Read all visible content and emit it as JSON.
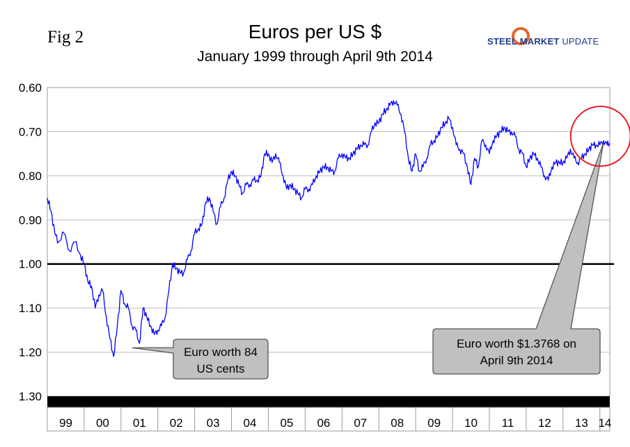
{
  "fig_label": "Fig 2",
  "logo": {
    "word1": "STEEL",
    "word2": "MARKET",
    "word3": "UPDATE",
    "ring_color": "#e8632b"
  },
  "chart_data": {
    "type": "line",
    "title": "Euros per US $",
    "subtitle": "January 1999 through April 9th 2014",
    "xlabel": "",
    "ylabel": "",
    "ylim": [
      0.6,
      1.3
    ],
    "y_inverted": true,
    "y_ticks": [
      "0.60",
      "0.70",
      "0.80",
      "0.90",
      "1.00",
      "1.10",
      "1.20",
      "1.30"
    ],
    "x_range": [
      1999.0,
      2014.27
    ],
    "x_ticks": [
      "99",
      "00",
      "01",
      "02",
      "03",
      "04",
      "05",
      "06",
      "07",
      "08",
      "09",
      "10",
      "11",
      "12",
      "13",
      "14"
    ],
    "reference_line": {
      "value": 1.0,
      "color": "#000000"
    },
    "series": [
      {
        "name": "Euros per US $",
        "color": "#0000ff",
        "x": [
          1999.0,
          1999.1,
          1999.2,
          1999.3,
          1999.45,
          1999.6,
          1999.75,
          1999.9,
          2000.0,
          2000.1,
          2000.2,
          2000.3,
          2000.4,
          2000.5,
          2000.6,
          2000.7,
          2000.8,
          2000.9,
          2001.0,
          2001.1,
          2001.2,
          2001.3,
          2001.4,
          2001.5,
          2001.6,
          2001.7,
          2001.8,
          2001.9,
          2002.0,
          2002.1,
          2002.2,
          2002.3,
          2002.4,
          2002.5,
          2002.6,
          2002.7,
          2002.8,
          2002.9,
          2003.0,
          2003.1,
          2003.2,
          2003.3,
          2003.4,
          2003.5,
          2003.6,
          2003.7,
          2003.8,
          2003.9,
          2004.0,
          2004.1,
          2004.2,
          2004.3,
          2004.4,
          2004.5,
          2004.6,
          2004.7,
          2004.8,
          2004.9,
          2005.0,
          2005.1,
          2005.2,
          2005.3,
          2005.4,
          2005.5,
          2005.6,
          2005.7,
          2005.8,
          2005.9,
          2006.0,
          2006.1,
          2006.2,
          2006.3,
          2006.4,
          2006.5,
          2006.6,
          2006.7,
          2006.8,
          2006.9,
          2007.0,
          2007.1,
          2007.2,
          2007.3,
          2007.4,
          2007.5,
          2007.6,
          2007.7,
          2007.8,
          2007.9,
          2008.0,
          2008.1,
          2008.2,
          2008.3,
          2008.4,
          2008.5,
          2008.6,
          2008.7,
          2008.8,
          2008.9,
          2009.0,
          2009.1,
          2009.2,
          2009.3,
          2009.4,
          2009.5,
          2009.6,
          2009.7,
          2009.8,
          2009.9,
          2010.0,
          2010.1,
          2010.2,
          2010.3,
          2010.4,
          2010.5,
          2010.6,
          2010.7,
          2010.8,
          2010.9,
          2011.0,
          2011.1,
          2011.2,
          2011.3,
          2011.4,
          2011.5,
          2011.6,
          2011.7,
          2011.8,
          2011.9,
          2012.0,
          2012.1,
          2012.2,
          2012.3,
          2012.4,
          2012.5,
          2012.6,
          2012.7,
          2012.8,
          2012.9,
          2013.0,
          2013.1,
          2013.2,
          2013.3,
          2013.4,
          2013.5,
          2013.6,
          2013.7,
          2013.8,
          2013.9,
          2014.0,
          2014.1,
          2014.2,
          2014.27
        ],
        "values": [
          0.85,
          0.88,
          0.93,
          0.95,
          0.93,
          0.97,
          0.95,
          0.98,
          1.0,
          1.04,
          1.05,
          1.1,
          1.07,
          1.06,
          1.12,
          1.17,
          1.21,
          1.14,
          1.06,
          1.09,
          1.1,
          1.14,
          1.15,
          1.18,
          1.1,
          1.12,
          1.14,
          1.16,
          1.15,
          1.14,
          1.12,
          1.06,
          1.0,
          1.01,
          1.02,
          1.02,
          0.99,
          0.97,
          0.93,
          0.92,
          0.91,
          0.86,
          0.85,
          0.88,
          0.91,
          0.87,
          0.85,
          0.81,
          0.79,
          0.8,
          0.82,
          0.84,
          0.82,
          0.82,
          0.81,
          0.81,
          0.8,
          0.75,
          0.75,
          0.77,
          0.75,
          0.77,
          0.8,
          0.83,
          0.82,
          0.83,
          0.84,
          0.85,
          0.83,
          0.83,
          0.82,
          0.8,
          0.79,
          0.78,
          0.78,
          0.79,
          0.79,
          0.76,
          0.75,
          0.76,
          0.76,
          0.75,
          0.74,
          0.73,
          0.73,
          0.73,
          0.7,
          0.68,
          0.68,
          0.66,
          0.65,
          0.64,
          0.63,
          0.64,
          0.66,
          0.7,
          0.76,
          0.79,
          0.75,
          0.79,
          0.78,
          0.76,
          0.73,
          0.72,
          0.71,
          0.69,
          0.68,
          0.67,
          0.69,
          0.73,
          0.74,
          0.75,
          0.78,
          0.82,
          0.76,
          0.78,
          0.72,
          0.73,
          0.75,
          0.72,
          0.71,
          0.7,
          0.69,
          0.7,
          0.7,
          0.71,
          0.74,
          0.75,
          0.78,
          0.76,
          0.75,
          0.76,
          0.78,
          0.8,
          0.81,
          0.78,
          0.77,
          0.77,
          0.77,
          0.76,
          0.74,
          0.76,
          0.77,
          0.76,
          0.75,
          0.74,
          0.73,
          0.73,
          0.73,
          0.72,
          0.73,
          0.726
        ]
      }
    ],
    "annotations": [
      {
        "line1": "Euro worth 84",
        "line2": "US cents",
        "points_to": {
          "x": 2001.3,
          "y": 1.19
        }
      },
      {
        "line1": "Euro worth $1.3768 on",
        "line2": "April 9th 2014",
        "points_to": {
          "x": 2014.1,
          "y": 0.725
        }
      }
    ],
    "highlight_circle": {
      "x": 2014.0,
      "y": 0.715,
      "color": "#e81c24"
    }
  }
}
